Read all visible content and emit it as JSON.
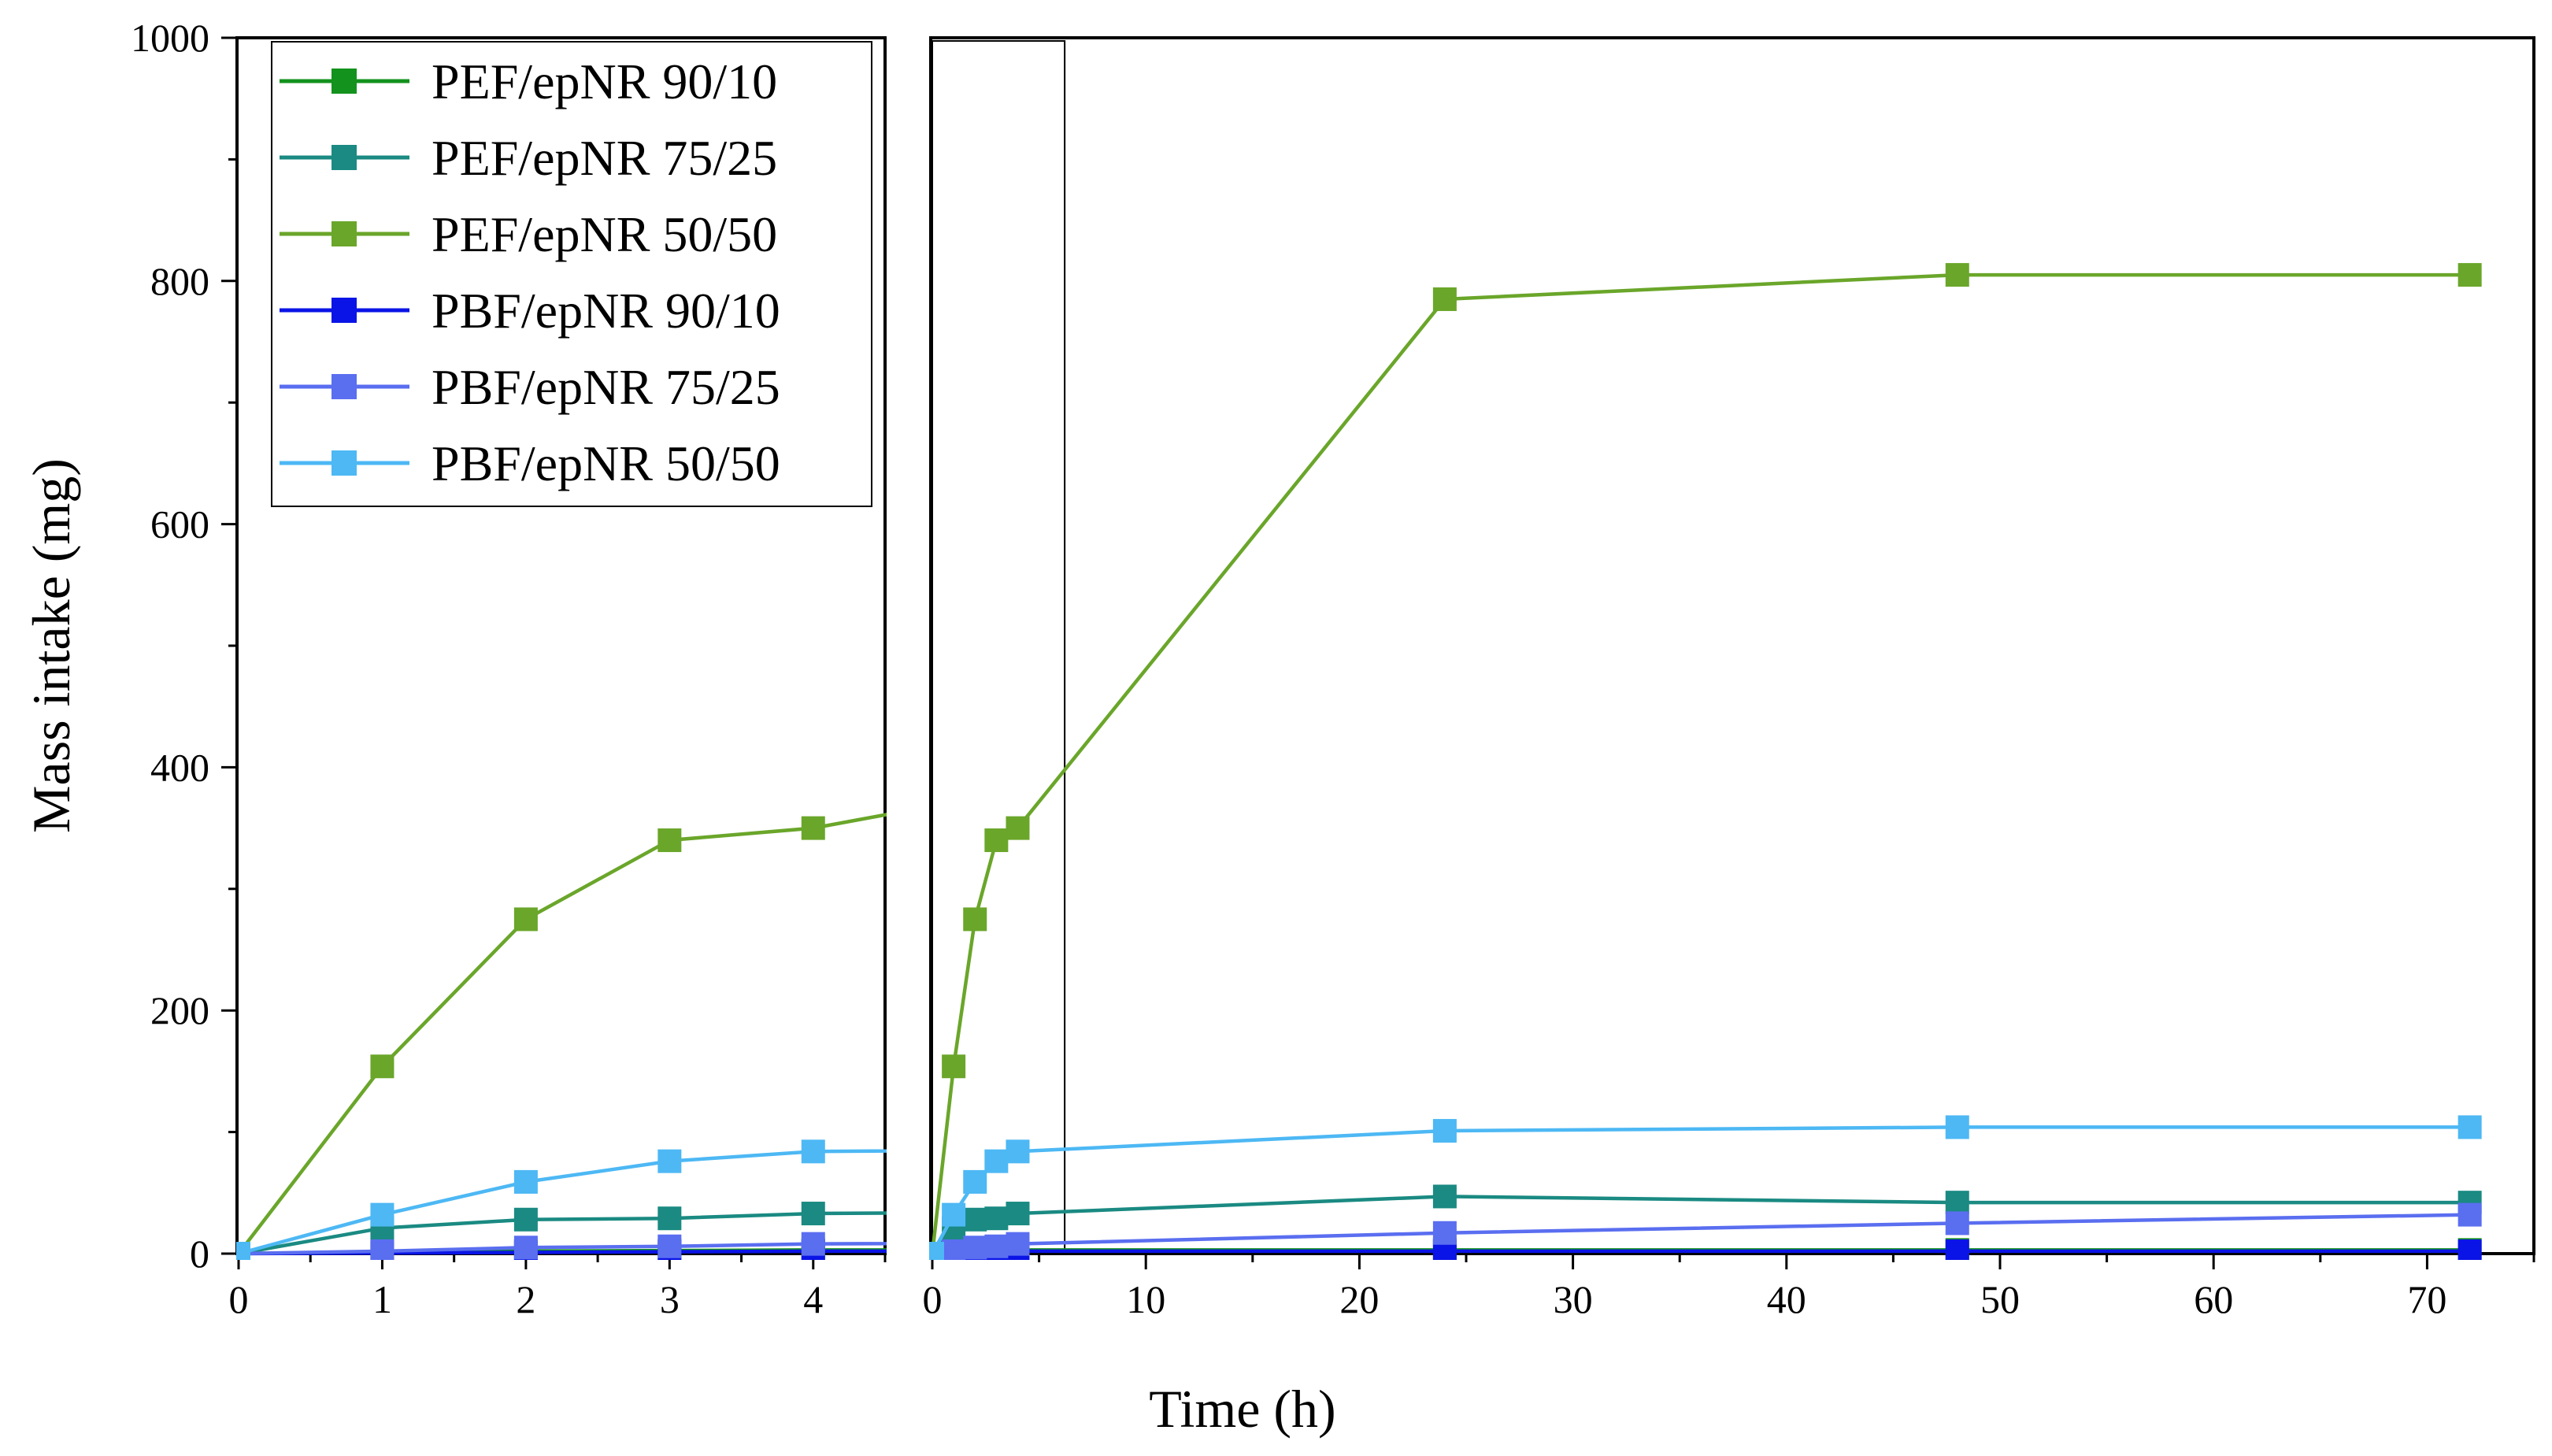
{
  "chart_data": {
    "type": "line",
    "title": "",
    "ylabel": "Mass intake (mg)",
    "xlabel": "Time (h)",
    "ylim": [
      0,
      1000
    ],
    "yticks": [
      "0",
      "200",
      "400",
      "600",
      "800",
      "1000"
    ],
    "panels": [
      {
        "name": "zoom",
        "xlim": [
          0,
          4.5
        ],
        "xticks": [
          "0",
          "1",
          "2",
          "3",
          "4"
        ]
      },
      {
        "name": "full",
        "xlim": [
          0,
          75
        ],
        "xticks": [
          "0",
          "10",
          "20",
          "30",
          "40",
          "50",
          "60",
          "70"
        ],
        "zoom_box_x": [
          0,
          6.2
        ]
      }
    ],
    "x": [
      0,
      1,
      2,
      3,
      4,
      24,
      48,
      72
    ],
    "legend_position": "top-left",
    "series": [
      {
        "name": "PEF/epNR 90/10",
        "color": "#13921d",
        "values": [
          0,
          1.5,
          2,
          2.5,
          3,
          3,
          3,
          3
        ]
      },
      {
        "name": "PEF/epNR 75/25",
        "color": "#1a8a82",
        "values": [
          0,
          21,
          28,
          29,
          33,
          47,
          42,
          42
        ]
      },
      {
        "name": "PEF/epNR 50/50",
        "color": "#6aa62a",
        "values": [
          0,
          154,
          275,
          340,
          350,
          785,
          805,
          805
        ]
      },
      {
        "name": "PBF/epNR 90/10",
        "color": "#0a14e6",
        "values": [
          0,
          0.5,
          1,
          1.5,
          2,
          2,
          2,
          2
        ]
      },
      {
        "name": "PBF/epNR 75/25",
        "color": "#5a6ef0",
        "values": [
          0,
          2,
          5,
          6,
          8,
          17,
          25,
          32
        ]
      },
      {
        "name": "PBF/epNR 50/50",
        "color": "#4db8f4",
        "values": [
          0,
          32,
          59,
          76,
          84,
          101,
          104,
          104
        ]
      }
    ]
  }
}
